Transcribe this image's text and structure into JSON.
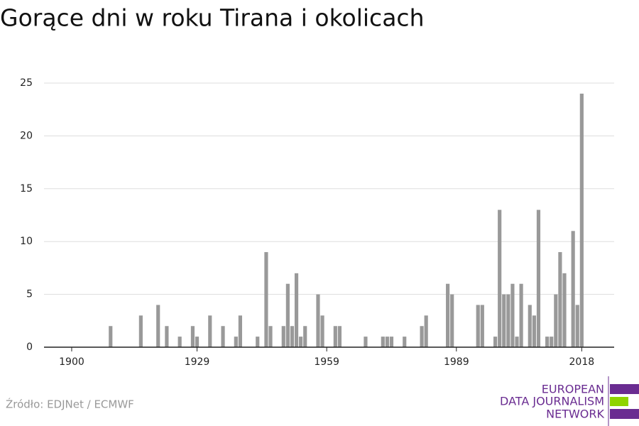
{
  "chart_data": {
    "type": "bar",
    "title": "Gorące dni w roku Tirana i okolicach",
    "source": "Źródło: EDJNet / ECMWF",
    "logo": [
      "EUROPEAN",
      "DATA JOURNALISM",
      "NETWORK"
    ],
    "color": "#999999",
    "grid": true,
    "x": [
      1900,
      1901,
      1902,
      1903,
      1904,
      1905,
      1906,
      1907,
      1908,
      1909,
      1910,
      1911,
      1912,
      1913,
      1914,
      1915,
      1916,
      1917,
      1918,
      1919,
      1920,
      1921,
      1922,
      1923,
      1924,
      1925,
      1926,
      1927,
      1928,
      1929,
      1930,
      1931,
      1932,
      1933,
      1934,
      1935,
      1936,
      1937,
      1938,
      1939,
      1940,
      1941,
      1942,
      1943,
      1944,
      1945,
      1946,
      1947,
      1948,
      1949,
      1950,
      1951,
      1952,
      1953,
      1954,
      1955,
      1956,
      1957,
      1958,
      1959,
      1960,
      1961,
      1962,
      1963,
      1964,
      1965,
      1966,
      1967,
      1968,
      1969,
      1970,
      1971,
      1972,
      1973,
      1974,
      1975,
      1976,
      1977,
      1978,
      1979,
      1980,
      1981,
      1982,
      1983,
      1984,
      1985,
      1986,
      1987,
      1988,
      1989,
      1990,
      1991,
      1992,
      1993,
      1994,
      1995,
      1996,
      1997,
      1998,
      1999,
      2000,
      2001,
      2002,
      2003,
      2004,
      2005,
      2006,
      2007,
      2008,
      2009,
      2010,
      2011,
      2012,
      2013,
      2014,
      2015,
      2016,
      2017,
      2018
    ],
    "values": [
      0,
      0,
      0,
      0,
      0,
      0,
      0,
      0,
      0,
      2,
      0,
      0,
      0,
      0,
      0,
      0,
      3,
      0,
      0,
      0,
      4,
      0,
      2,
      0,
      0,
      1,
      0,
      0,
      2,
      1,
      0,
      0,
      3,
      0,
      0,
      2,
      0,
      0,
      1,
      3,
      0,
      0,
      0,
      1,
      0,
      9,
      2,
      0,
      0,
      2,
      6,
      2,
      7,
      1,
      2,
      0,
      0,
      5,
      3,
      0,
      0,
      2,
      2,
      0,
      0,
      0,
      0,
      0,
      1,
      0,
      0,
      0,
      1,
      1,
      1,
      0,
      0,
      1,
      0,
      0,
      0,
      2,
      3,
      0,
      0,
      0,
      0,
      6,
      5,
      0,
      0,
      0,
      0,
      0,
      4,
      4,
      0,
      0,
      1,
      13,
      5,
      5,
      6,
      1,
      6,
      0,
      4,
      3,
      13,
      0,
      1,
      1,
      5,
      9,
      7,
      0,
      11,
      4,
      24
    ],
    "xlim": [
      1893.6,
      2025.5
    ],
    "xticks": [
      1900,
      1929,
      1959,
      1989,
      2018
    ],
    "ylim": [
      0,
      25
    ],
    "yticks": [
      0,
      5,
      10,
      15,
      20,
      25
    ]
  }
}
